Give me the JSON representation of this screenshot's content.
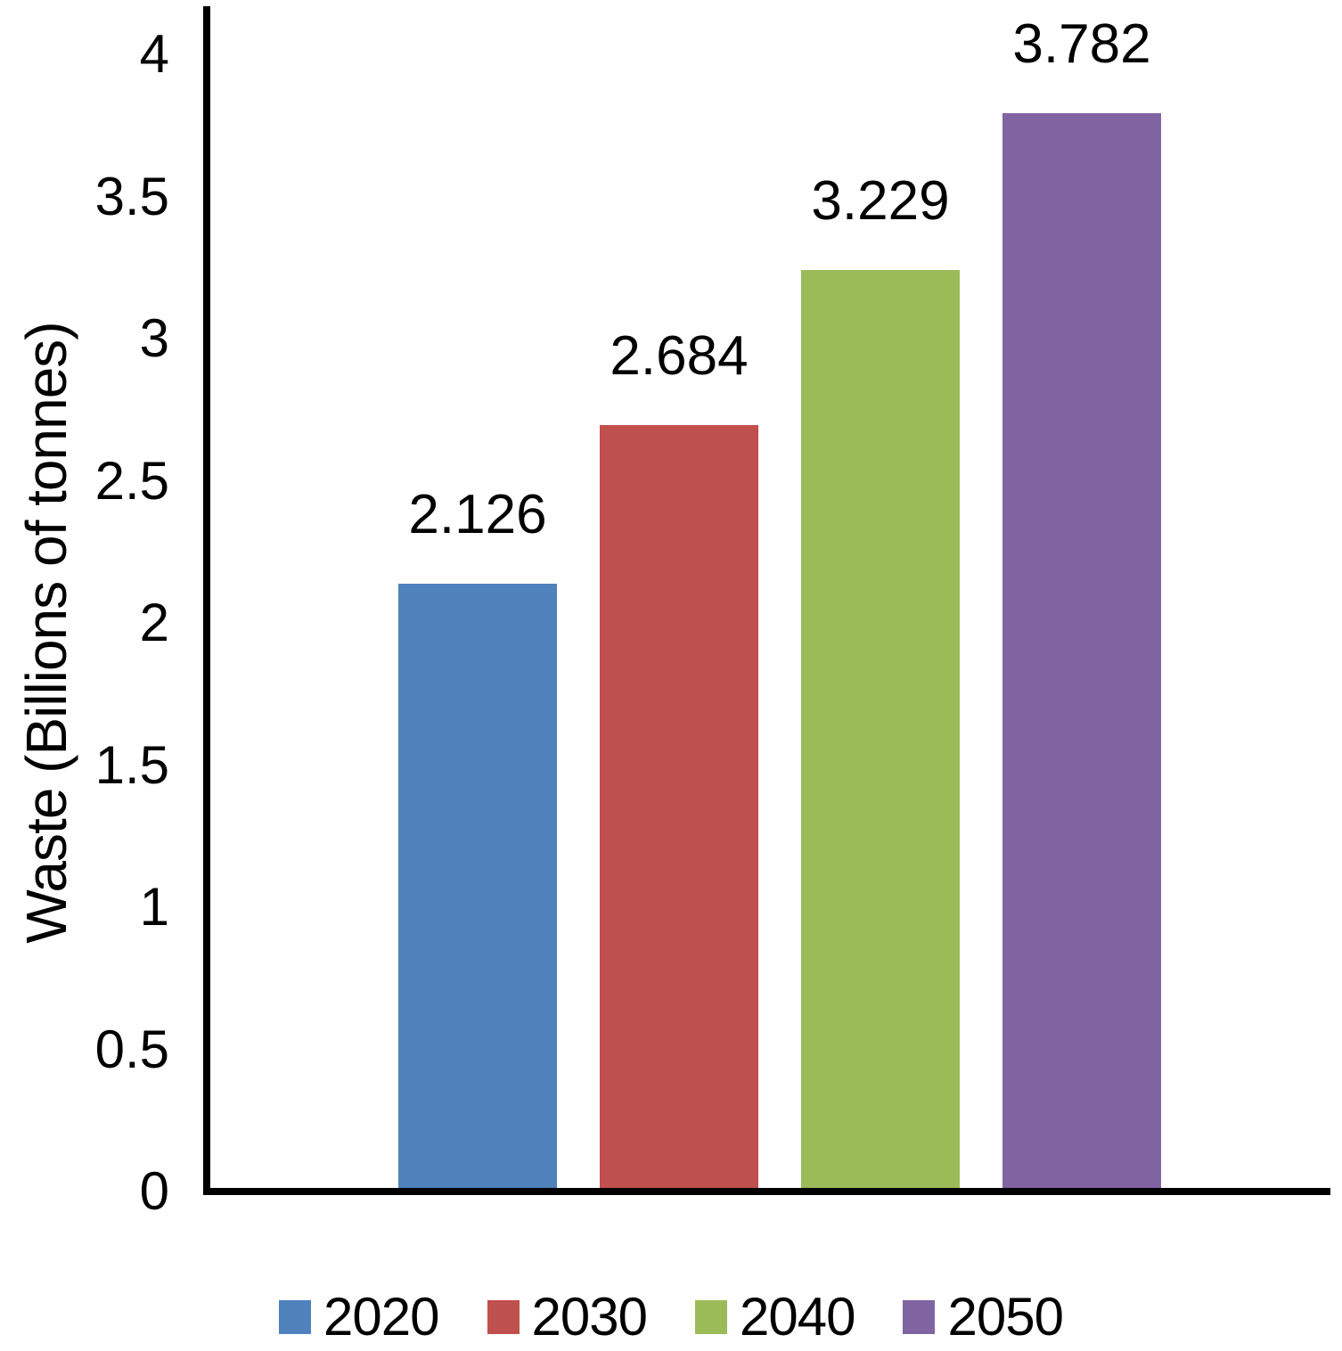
{
  "chart_data": {
    "type": "bar",
    "title": "",
    "xlabel": "",
    "ylabel": "Waste (Billions of tonnes)",
    "categories": [
      "2020",
      "2030",
      "2040",
      "2050"
    ],
    "values": [
      2.126,
      2.684,
      3.229,
      3.782
    ],
    "data_labels": [
      "2.126",
      "2.684",
      "3.229",
      "3.782"
    ],
    "colors": [
      "#4F81BD",
      "#C0504D",
      "#9BBB59",
      "#8064A2"
    ],
    "ylim": [
      0,
      4
    ],
    "yticks": [
      0,
      0.5,
      1,
      1.5,
      2,
      2.5,
      3,
      3.5,
      4
    ],
    "ytick_labels": [
      "0",
      "0.5",
      "1",
      "1.5",
      "2",
      "2.5",
      "3",
      "3.5",
      "4"
    ],
    "grid": false,
    "legend_position": "bottom",
    "axis_color": "#000000",
    "text_color": "#000000",
    "background_color": "#FFFFFF"
  }
}
